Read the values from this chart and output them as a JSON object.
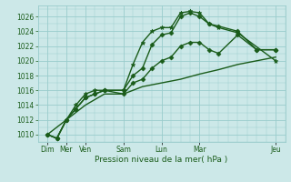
{
  "xlabel": "Pression niveau de la mer( hPa )",
  "background_color": "#cce8e8",
  "grid_color": "#99cccc",
  "line_color": "#1a5c1a",
  "ylim": [
    1009,
    1027.5
  ],
  "yticks": [
    1010,
    1012,
    1014,
    1016,
    1018,
    1020,
    1022,
    1024,
    1026
  ],
  "xlim": [
    0,
    13
  ],
  "xtick_positions": [
    0.5,
    1.5,
    2.5,
    4.5,
    6.5,
    8.5,
    12.5
  ],
  "xtick_labels": [
    "Dim",
    "Mer",
    "Ven",
    "Sam",
    "Lun",
    "Mar",
    "Jeu"
  ],
  "series": [
    {
      "x": [
        0.5,
        1.0,
        1.5,
        2.0,
        2.5,
        3.0,
        3.5,
        4.5,
        5.0,
        5.5,
        6.0,
        6.5,
        7.0,
        7.5,
        8.0,
        8.5,
        9.0,
        9.5,
        10.5,
        12.5
      ],
      "y": [
        1010,
        1009.5,
        1012,
        1014,
        1015.5,
        1016,
        1016,
        1016,
        1019.5,
        1022.5,
        1024,
        1024.5,
        1024.5,
        1026.5,
        1026.7,
        1026.5,
        1025,
        1024.5,
        1023.8,
        1020
      ],
      "marker": "*",
      "ms": 3.5,
      "lw": 1.0
    },
    {
      "x": [
        0.5,
        1.0,
        1.5,
        2.0,
        2.5,
        3.0,
        3.5,
        4.5,
        5.0,
        5.5,
        6.0,
        6.5,
        7.0,
        7.5,
        8.0,
        8.5,
        9.0,
        9.5,
        10.5,
        11.5,
        12.5
      ],
      "y": [
        1010,
        1009.5,
        1012,
        1013.5,
        1015,
        1015.5,
        1016,
        1016,
        1018,
        1019,
        1022.2,
        1023.5,
        1023.8,
        1026,
        1026.5,
        1026,
        1025,
        1024.7,
        1024,
        1021.5,
        1021.5
      ],
      "marker": "D",
      "ms": 2.5,
      "lw": 1.0
    },
    {
      "x": [
        0.5,
        1.0,
        1.5,
        2.0,
        2.5,
        3.0,
        3.5,
        4.5,
        5.0,
        5.5,
        6.0,
        6.5,
        7.0,
        7.5,
        8.0,
        8.5,
        9.0,
        9.5,
        10.5,
        11.5,
        12.5
      ],
      "y": [
        1010,
        1009.5,
        1012,
        1013.5,
        1015,
        1015.5,
        1016,
        1015.5,
        1017,
        1017.5,
        1019,
        1020,
        1020.5,
        1022,
        1022.5,
        1022.5,
        1021.5,
        1021,
        1023.5,
        1021.5,
        1021.5
      ],
      "marker": "D",
      "ms": 2.5,
      "lw": 1.0
    },
    {
      "x": [
        0.5,
        1.5,
        2.5,
        3.5,
        4.5,
        5.5,
        6.5,
        7.5,
        8.5,
        9.5,
        10.5,
        11.5,
        12.5
      ],
      "y": [
        1010,
        1012,
        1014,
        1015.5,
        1015.5,
        1016.5,
        1017,
        1017.5,
        1018.2,
        1018.8,
        1019.5,
        1020,
        1020.5
      ],
      "marker": null,
      "ms": 0,
      "lw": 1.0
    }
  ]
}
